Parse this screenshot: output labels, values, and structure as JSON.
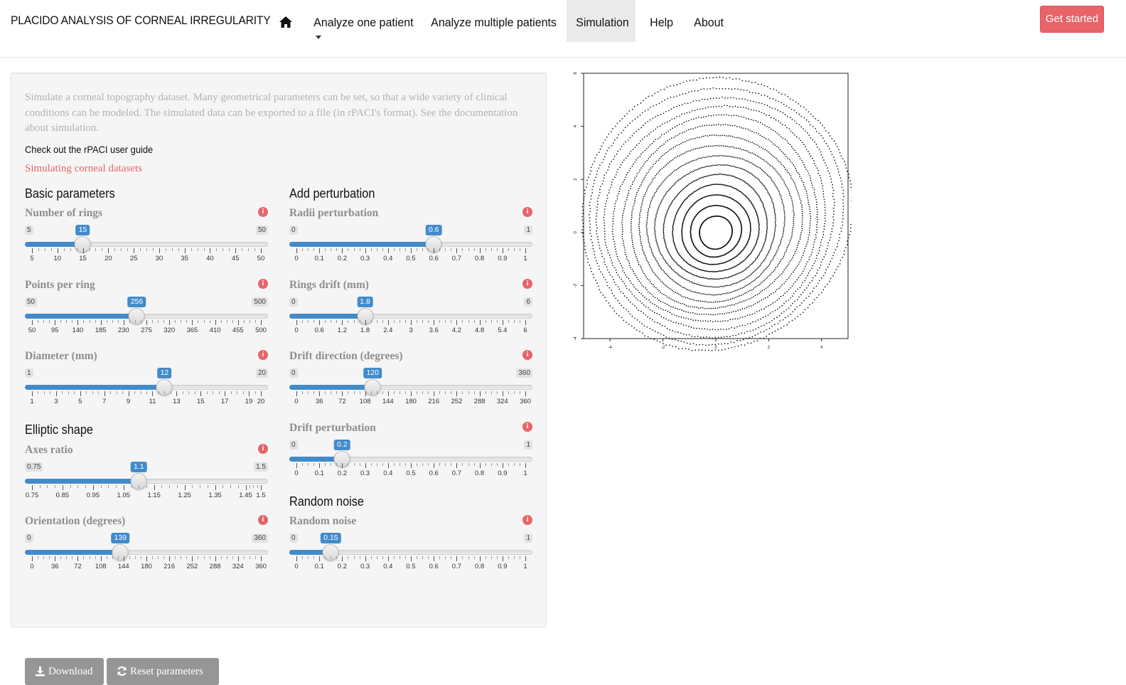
{
  "navbar": {
    "brand": "PLACIDO ANALYSIS OF CORNEAL IRREGULARITY",
    "items": [
      {
        "label": "Analyze one patient"
      },
      {
        "label": "Analyze multiple patients"
      },
      {
        "label": "Simulation"
      },
      {
        "label": "Help"
      },
      {
        "label": "About"
      }
    ],
    "active": "Simulation",
    "get_started": "Get started",
    "icons": [
      "home-icon",
      "caret-down-icon"
    ]
  },
  "sidebar": {
    "intro": "Simulate a corneal topography dataset. Many geometrical parameters can be set, so that a wide variety of clinical conditions can be modeled. The simulated data can be exported to a file (in rPACI's format). See the documentation about simulation.",
    "guide_link": "Check out the rPACI user guide",
    "sim_link": "Simulating corneal datasets",
    "sections": {
      "basic": "Basic parameters",
      "elliptic": "Elliptic shape",
      "perturbation": "Add perturbation",
      "noise": "Random noise"
    },
    "sliders": [
      {
        "id": "rings",
        "label": "Number of rings",
        "min": "5",
        "max": "50",
        "value": "15",
        "fraction": 0.222,
        "ticks": [
          "5",
          "10",
          "15",
          "20",
          "25",
          "30",
          "35",
          "40",
          "45",
          "50"
        ]
      },
      {
        "id": "points",
        "label": "Points per ring",
        "min": "50",
        "max": "500",
        "value": "256",
        "fraction": 0.458,
        "ticks": [
          "50",
          "95",
          "140",
          "185",
          "230",
          "275",
          "320",
          "365",
          "410",
          "455",
          "500"
        ]
      },
      {
        "id": "diameter",
        "label": "Diameter (mm)",
        "min": "1",
        "max": "20",
        "value": "12",
        "fraction": 0.579,
        "ticks": [
          "1",
          "3",
          "5",
          "7",
          "9",
          "11",
          "13",
          "15",
          "17",
          "19",
          "20"
        ]
      },
      {
        "id": "axes",
        "label": "Axes ratio",
        "min": "0.75",
        "max": "1.5",
        "value": "1.1",
        "fraction": 0.467,
        "ticks": [
          "0.75",
          "0.85",
          "0.95",
          "1.05",
          "1.15",
          "1.25",
          "1.35",
          "1.45",
          "1.5"
        ]
      },
      {
        "id": "orientation",
        "label": "Orientation (degrees)",
        "min": "0",
        "max": "360",
        "value": "139",
        "fraction": 0.386,
        "ticks": [
          "0",
          "36",
          "72",
          "108",
          "144",
          "180",
          "216",
          "252",
          "288",
          "324",
          "360"
        ]
      },
      {
        "id": "radii",
        "label": "Radii perturbation",
        "min": "0",
        "max": "1",
        "value": "0.6",
        "fraction": 0.6,
        "ticks": [
          "0",
          "0.1",
          "0.2",
          "0.3",
          "0.4",
          "0.5",
          "0.6",
          "0.7",
          "0.8",
          "0.9",
          "1"
        ]
      },
      {
        "id": "drift",
        "label": "Rings drift (mm)",
        "min": "0",
        "max": "6",
        "value": "1.8",
        "fraction": 0.3,
        "ticks": [
          "0",
          "0.6",
          "1.2",
          "1.8",
          "2.4",
          "3",
          "3.6",
          "4.2",
          "4.8",
          "5.4",
          "6"
        ]
      },
      {
        "id": "direction",
        "label": "Drift direction (degrees)",
        "min": "0",
        "max": "360",
        "value": "120",
        "fraction": 0.333,
        "ticks": [
          "0",
          "36",
          "72",
          "108",
          "144",
          "180",
          "216",
          "252",
          "288",
          "324",
          "360"
        ]
      },
      {
        "id": "driftpert",
        "label": "Drift perturbation",
        "min": "0",
        "max": "1",
        "value": "0.2",
        "fraction": 0.2,
        "ticks": [
          "0",
          "0.1",
          "0.2",
          "0.3",
          "0.4",
          "0.5",
          "0.6",
          "0.7",
          "0.8",
          "0.9",
          "1"
        ]
      },
      {
        "id": "noise",
        "label": "Random noise",
        "min": "0",
        "max": "1",
        "value": "0.15",
        "fraction": 0.15,
        "ticks": [
          "0",
          "0.1",
          "0.2",
          "0.3",
          "0.4",
          "0.5",
          "0.6",
          "0.7",
          "0.8",
          "0.9",
          "1"
        ]
      }
    ],
    "info_glyph": "i",
    "buttons": {
      "download": "Download",
      "reset": "Reset parameters"
    }
  },
  "chart_data": {
    "type": "scatter",
    "description_rings": 15,
    "points_per_ring": 256,
    "xlim": [
      -5,
      5
    ],
    "ylim": [
      -4,
      6
    ],
    "x_ticks": [
      "-4",
      "-2",
      "0",
      "2",
      "4"
    ],
    "y_ticks": [
      "-4",
      "-2",
      "0",
      "2",
      "4",
      "6"
    ],
    "center_x": 0,
    "center_y": 0.1,
    "max_radius": 5
  }
}
